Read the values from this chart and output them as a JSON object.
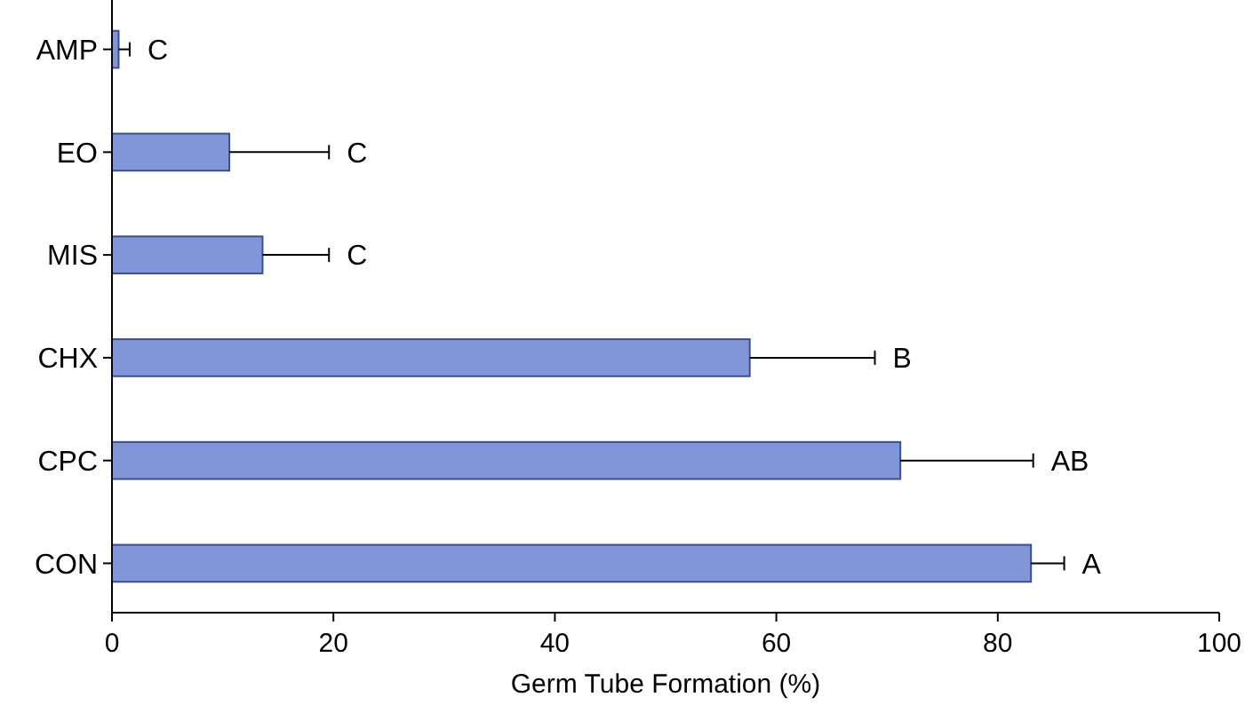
{
  "chart_data": {
    "type": "bar",
    "orientation": "horizontal",
    "xlabel": "Germ Tube Formation (%)",
    "categories": [
      "AMP",
      "EO",
      "MIS",
      "CHX",
      "CPC",
      "CON"
    ],
    "values": [
      0.6,
      10.6,
      13.6,
      57.6,
      71.2,
      83
    ],
    "errors": [
      1,
      9,
      6,
      11.3,
      12,
      3
    ],
    "color": "#8096d8",
    "xlim": [
      0,
      100
    ],
    "xticks": [
      0,
      20,
      40,
      60,
      80,
      100
    ],
    "grid": false,
    "annotations": [
      "C",
      "C",
      "C",
      "B",
      "AB",
      "A"
    ]
  }
}
